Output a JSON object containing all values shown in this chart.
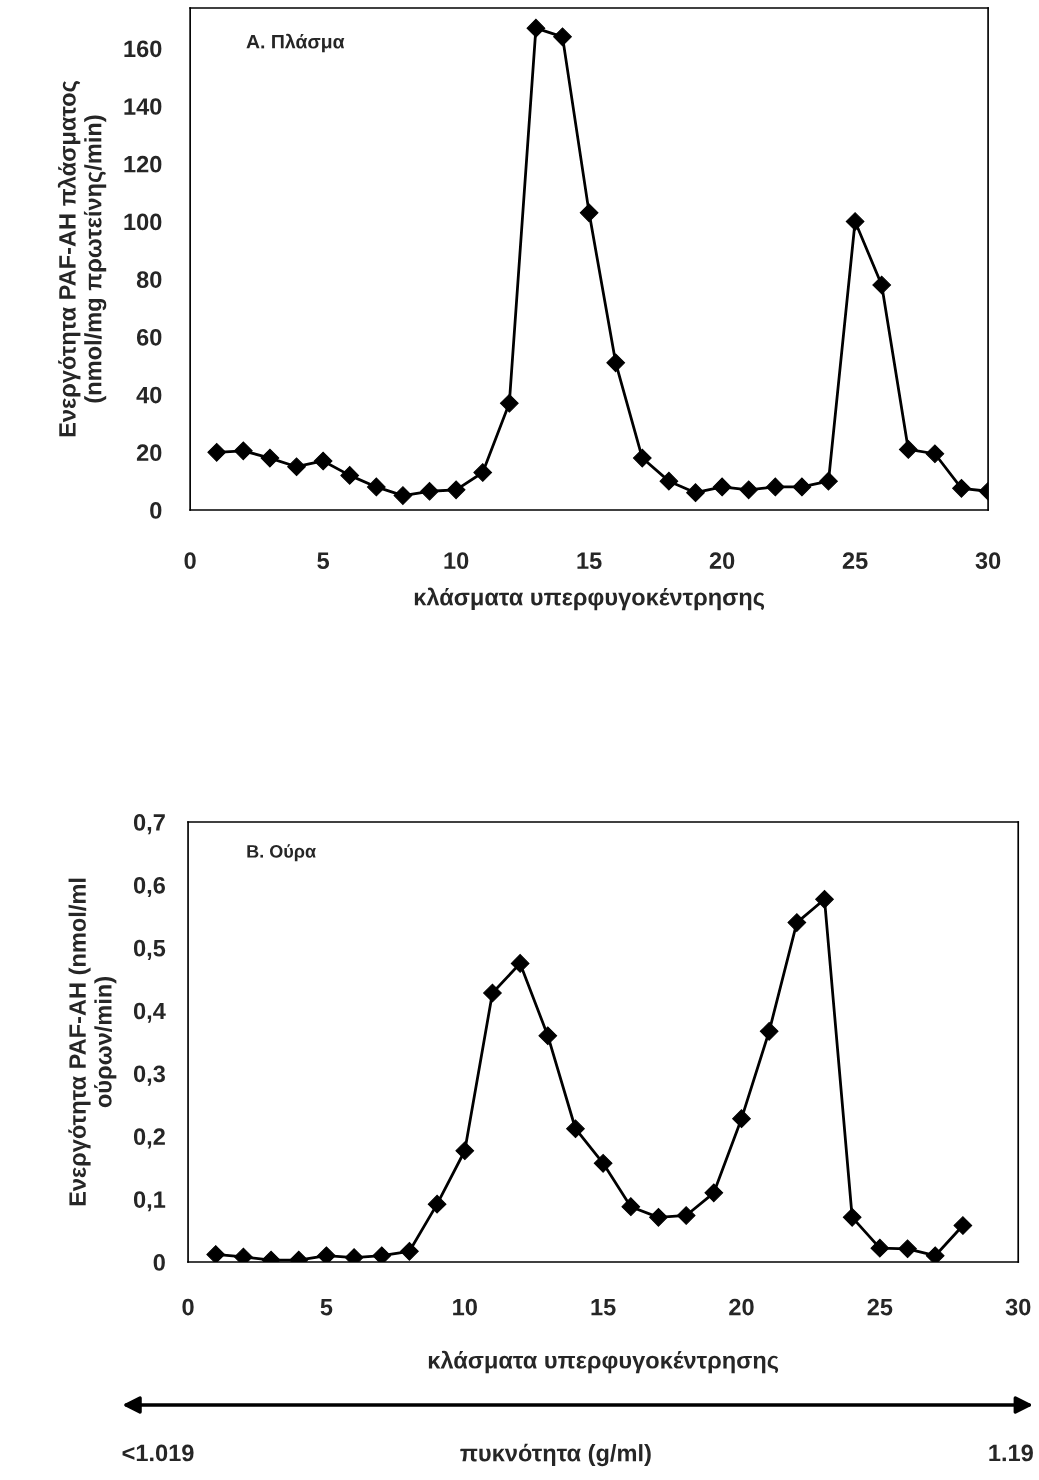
{
  "chart_data": [
    {
      "type": "line",
      "title": "A. Πλάσμα",
      "xlabel": "κλάσματα υπερφυγοκέντρησης",
      "ylabel": "Ενεργότητα PAF-AH πλάσματος\n(nmol/mg πρωτείνης/min)",
      "x": [
        1,
        2,
        3,
        4,
        5,
        6,
        7,
        8,
        9,
        10,
        11,
        12,
        13,
        14,
        15,
        16,
        17,
        18,
        19,
        20,
        21,
        22,
        23,
        24,
        25,
        26,
        27,
        28,
        29,
        30
      ],
      "series": [
        {
          "color": "#000000",
          "values": [
            20,
            20.5,
            18,
            15,
            17,
            12,
            8,
            5,
            6.5,
            7,
            13,
            37,
            167,
            164,
            103,
            51,
            18,
            10,
            6,
            8,
            7,
            8,
            8,
            10,
            100,
            78,
            21,
            19.5,
            7.5,
            6.5
          ]
        }
      ],
      "xlim": [
        0,
        30
      ],
      "xticks": [
        0,
        5,
        10,
        15,
        20,
        25,
        30
      ],
      "ylim": [
        0,
        174
      ],
      "yticks": [
        0,
        20,
        40,
        60,
        80,
        100,
        120,
        140,
        160
      ],
      "marker": "diamond",
      "line_style": "solid",
      "grid": false
    },
    {
      "type": "line",
      "title": "B. Ούρα",
      "xlabel": "κλάσματα υπερφυγοκέντρησης",
      "ylabel": "Ενεργότητα PAF-AH (nmol/ml\nούρων/min)",
      "x": [
        1,
        2,
        3,
        4,
        5,
        6,
        7,
        8,
        9,
        10,
        11,
        12,
        13,
        14,
        15,
        16,
        17,
        18,
        19,
        20,
        21,
        22,
        23,
        24,
        25,
        26,
        27,
        28
      ],
      "series": [
        {
          "color": "#000000",
          "values": [
            0.012,
            0.008,
            0.003,
            0.003,
            0.01,
            0.007,
            0.01,
            0.017,
            0.092,
            0.177,
            0.428,
            0.475,
            0.36,
            0.212,
            0.157,
            0.088,
            0.071,
            0.074,
            0.11,
            0.228,
            0.367,
            0.54,
            0.577,
            0.071,
            0.022,
            0.021,
            0.01,
            0.058
          ]
        }
      ],
      "xlim": [
        0,
        30
      ],
      "xticks": [
        0,
        5,
        10,
        15,
        20,
        25,
        30
      ],
      "ylim": [
        0,
        0.7
      ],
      "yticks": [
        0,
        {
          "value": 0.1,
          "label": "0,1"
        },
        {
          "value": 0.2,
          "label": "0,2"
        },
        {
          "value": 0.3,
          "label": "0,3"
        },
        {
          "value": 0.4,
          "label": "0,4"
        },
        {
          "value": 0.5,
          "label": "0,5"
        },
        {
          "value": 0.6,
          "label": "0,6"
        },
        {
          "value": 0.7,
          "label": "0,7"
        }
      ],
      "marker": "diamond",
      "line_style": "solid",
      "grid": false,
      "annotations": [
        "<1.019",
        "πυκνότητα (g/ml)",
        "1.19"
      ]
    }
  ]
}
